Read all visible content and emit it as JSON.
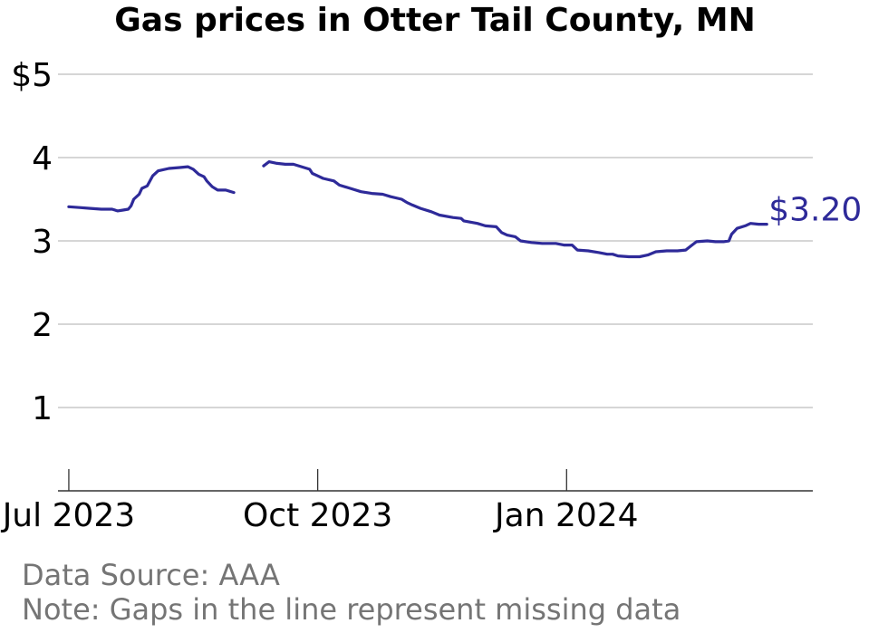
{
  "title": "Gas prices in Otter Tail County, MN",
  "source": "Data Source: AAA",
  "note": "Note: Gaps in the line represent missing data",
  "chart_data": {
    "type": "line",
    "title": "Gas prices in Otter Tail County, MN",
    "xlabel": "",
    "ylabel": "",
    "ylim": [
      0,
      5
    ],
    "yticks": [
      1,
      2,
      3,
      4,
      5
    ],
    "ytick_labels": [
      "1",
      "2",
      "3",
      "4",
      "$5"
    ],
    "xlim": [
      "2023-06-27",
      "2024-04-01"
    ],
    "xticks": [
      "2023-07-01",
      "2023-10-01",
      "2024-01-01"
    ],
    "xtick_labels": [
      "Jul 2023",
      "Oct 2023",
      "Jan 2024"
    ],
    "grid": "horizontal",
    "color": "#2e2a99",
    "end_label": "$3.20",
    "series": [
      {
        "segments": [
          [
            [
              "2023-07-01",
              3.41
            ],
            [
              "2023-07-05",
              3.4
            ],
            [
              "2023-07-09",
              3.39
            ],
            [
              "2023-07-13",
              3.38
            ],
            [
              "2023-07-17",
              3.38
            ],
            [
              "2023-07-19",
              3.36
            ],
            [
              "2023-07-21",
              3.37
            ],
            [
              "2023-07-23",
              3.38
            ],
            [
              "2023-07-24",
              3.42
            ],
            [
              "2023-07-25",
              3.5
            ],
            [
              "2023-07-27",
              3.56
            ],
            [
              "2023-07-28",
              3.63
            ],
            [
              "2023-07-30",
              3.66
            ],
            [
              "2023-08-01",
              3.78
            ],
            [
              "2023-08-03",
              3.84
            ],
            [
              "2023-08-07",
              3.87
            ],
            [
              "2023-08-11",
              3.88
            ],
            [
              "2023-08-14",
              3.89
            ],
            [
              "2023-08-16",
              3.86
            ],
            [
              "2023-08-18",
              3.8
            ],
            [
              "2023-08-20",
              3.77
            ],
            [
              "2023-08-21",
              3.72
            ],
            [
              "2023-08-23",
              3.65
            ],
            [
              "2023-08-25",
              3.61
            ],
            [
              "2023-08-28",
              3.61
            ],
            [
              "2023-08-31",
              3.58
            ]
          ],
          [
            [
              "2023-09-11",
              3.9
            ],
            [
              "2023-09-13",
              3.95
            ],
            [
              "2023-09-16",
              3.93
            ],
            [
              "2023-09-19",
              3.92
            ],
            [
              "2023-09-22",
              3.92
            ],
            [
              "2023-09-25",
              3.89
            ],
            [
              "2023-09-28",
              3.86
            ],
            [
              "2023-09-29",
              3.81
            ],
            [
              "2023-10-01",
              3.78
            ],
            [
              "2023-10-03",
              3.75
            ],
            [
              "2023-10-07",
              3.72
            ],
            [
              "2023-10-09",
              3.67
            ],
            [
              "2023-10-13",
              3.63
            ],
            [
              "2023-10-17",
              3.59
            ],
            [
              "2023-10-21",
              3.57
            ],
            [
              "2023-10-25",
              3.56
            ],
            [
              "2023-10-28",
              3.53
            ],
            [
              "2023-11-01",
              3.5
            ],
            [
              "2023-11-03",
              3.46
            ],
            [
              "2023-11-05",
              3.43
            ],
            [
              "2023-11-08",
              3.39
            ],
            [
              "2023-11-12",
              3.35
            ],
            [
              "2023-11-15",
              3.31
            ],
            [
              "2023-11-20",
              3.28
            ],
            [
              "2023-11-23",
              3.27
            ],
            [
              "2023-11-24",
              3.24
            ],
            [
              "2023-11-29",
              3.21
            ],
            [
              "2023-12-02",
              3.18
            ],
            [
              "2023-12-06",
              3.17
            ],
            [
              "2023-12-08",
              3.1
            ],
            [
              "2023-12-10",
              3.07
            ],
            [
              "2023-12-13",
              3.05
            ],
            [
              "2023-12-15",
              3.0
            ],
            [
              "2023-12-19",
              2.98
            ],
            [
              "2023-12-23",
              2.97
            ],
            [
              "2023-12-28",
              2.97
            ],
            [
              "2023-12-31",
              2.95
            ],
            [
              "2024-01-03",
              2.95
            ],
            [
              "2024-01-05",
              2.89
            ],
            [
              "2024-01-09",
              2.88
            ],
            [
              "2024-01-13",
              2.86
            ],
            [
              "2024-01-16",
              2.84
            ],
            [
              "2024-01-18",
              2.84
            ],
            [
              "2024-01-20",
              2.82
            ],
            [
              "2024-01-24",
              2.81
            ],
            [
              "2024-01-28",
              2.81
            ],
            [
              "2024-01-31",
              2.83
            ],
            [
              "2024-02-03",
              2.87
            ],
            [
              "2024-02-07",
              2.88
            ],
            [
              "2024-02-11",
              2.88
            ],
            [
              "2024-02-14",
              2.89
            ],
            [
              "2024-02-16",
              2.94
            ],
            [
              "2024-02-18",
              2.99
            ],
            [
              "2024-02-22",
              3.0
            ],
            [
              "2024-02-25",
              2.99
            ],
            [
              "2024-02-28",
              2.99
            ],
            [
              "2024-03-01",
              3.0
            ],
            [
              "2024-03-02",
              3.08
            ],
            [
              "2024-03-04",
              3.15
            ],
            [
              "2024-03-07",
              3.18
            ],
            [
              "2024-03-09",
              3.21
            ],
            [
              "2024-03-12",
              3.2
            ],
            [
              "2024-03-15",
              3.2
            ]
          ]
        ]
      }
    ]
  }
}
